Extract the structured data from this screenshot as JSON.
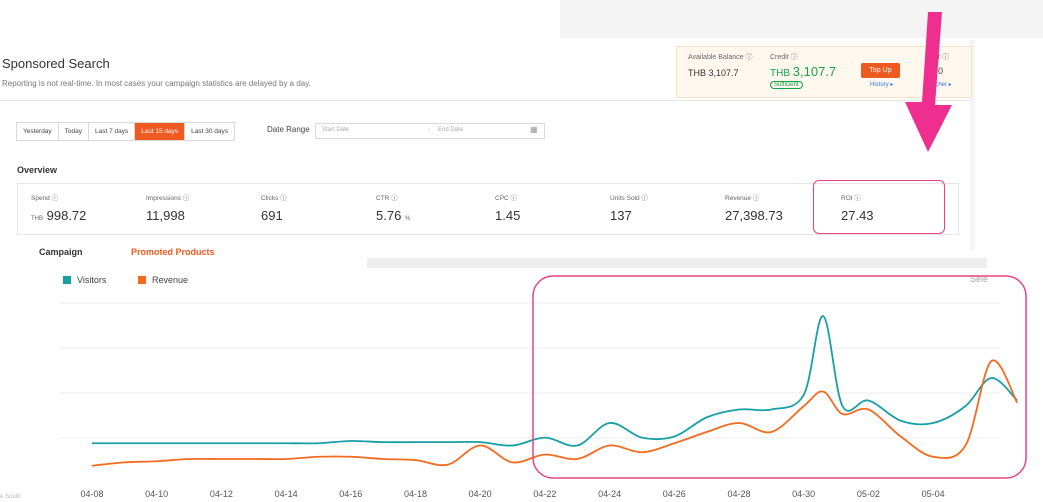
{
  "page": {
    "title": "Sponsored Search",
    "subtitle": "Reporting is not real-time. In most cases your campaign statistics are delayed by a day."
  },
  "balance": {
    "available_label": "Available Balance ⓘ",
    "available_value": "THB 3,107.7",
    "credit_label": "Credit ⓘ",
    "credit_currency": "THB",
    "credit_value": "3,107.7",
    "sufficient": "Sufficient",
    "topup": "Top Up",
    "history": "History ▸",
    "voucher_label_fragment": "r ⓘ",
    "voucher_value_fragment": "0",
    "voucher_link_fragment": "ucher ▸"
  },
  "date_tabs": [
    "Yesterday",
    "Today",
    "Last 7 days",
    "Last 15 days",
    "Last 30 days"
  ],
  "active_tab": "Last 15 days",
  "date_range": {
    "label": "Date Range",
    "start_placeholder": "Start Date",
    "end_placeholder": "End Date",
    "separator": "-"
  },
  "overview": {
    "title": "Overview",
    "metrics": [
      {
        "label": "Spend ⓘ",
        "prefix": "THB",
        "value": "998.72"
      },
      {
        "label": "Impressions ⓘ",
        "value": "11,998"
      },
      {
        "label": "Clicks ⓘ",
        "value": "691"
      },
      {
        "label": "CTR ⓘ",
        "value": "5.76",
        "unit": "%"
      },
      {
        "label": "CPC ⓘ",
        "value": "1.45"
      },
      {
        "label": "Units Sold ⓘ",
        "value": "137"
      },
      {
        "label": "Revenue ⓘ",
        "value": "27,398.73"
      },
      {
        "label": "ROI ⓘ",
        "value": "27.43"
      }
    ]
  },
  "links": {
    "campaign": "Campaign",
    "promoted": "Promoted Products"
  },
  "select_fragment": "Sele",
  "footer_fragment": "e South",
  "colors": {
    "accent": "#ee5a1f",
    "visitors": "#16a0a6",
    "revenue": "#f26b21",
    "highlight": "#e8457c",
    "credit": "#16a34a"
  },
  "chart_data": {
    "type": "line",
    "x": [
      "04-08",
      "04-10",
      "04-12",
      "04-14",
      "04-16",
      "04-18",
      "04-20",
      "04-22",
      "04-24",
      "04-26",
      "04-28",
      "04-30",
      "05-02",
      "05-04"
    ],
    "series": [
      {
        "name": "Visitors",
        "color": "#16a0a6",
        "points": [
          [
            0,
            22
          ],
          [
            0.5,
            22
          ],
          [
            1,
            22
          ],
          [
            1.5,
            22
          ],
          [
            2,
            22
          ],
          [
            2.5,
            22
          ],
          [
            3,
            22
          ],
          [
            3.5,
            22
          ],
          [
            4,
            24
          ],
          [
            4.5,
            23
          ],
          [
            5,
            23
          ],
          [
            5.5,
            23
          ],
          [
            6,
            23
          ],
          [
            6.5,
            20
          ],
          [
            7,
            27
          ],
          [
            7.5,
            20
          ],
          [
            8,
            40
          ],
          [
            8.5,
            27
          ],
          [
            9,
            28
          ],
          [
            9.5,
            45
          ],
          [
            10,
            52
          ],
          [
            10.5,
            52
          ],
          [
            11,
            65
          ],
          [
            11.3,
            135
          ],
          [
            11.6,
            55
          ],
          [
            12,
            60
          ],
          [
            12.5,
            42
          ],
          [
            13,
            40
          ],
          [
            13.5,
            55
          ],
          [
            13.9,
            80
          ],
          [
            14.3,
            60
          ]
        ]
      },
      {
        "name": "Revenue",
        "color": "#f26b21",
        "points": [
          [
            0,
            2
          ],
          [
            0.5,
            5
          ],
          [
            1,
            6
          ],
          [
            1.5,
            8
          ],
          [
            2,
            8
          ],
          [
            2.5,
            8
          ],
          [
            3,
            8
          ],
          [
            3.5,
            10
          ],
          [
            4,
            10
          ],
          [
            4.5,
            8
          ],
          [
            5,
            7
          ],
          [
            5.5,
            3
          ],
          [
            6,
            20
          ],
          [
            6.5,
            5
          ],
          [
            7,
            12
          ],
          [
            7.5,
            8
          ],
          [
            8,
            20
          ],
          [
            8.5,
            14
          ],
          [
            9,
            22
          ],
          [
            9.5,
            32
          ],
          [
            10,
            40
          ],
          [
            10.5,
            32
          ],
          [
            11,
            55
          ],
          [
            11.3,
            68
          ],
          [
            11.6,
            48
          ],
          [
            12,
            52
          ],
          [
            12.5,
            28
          ],
          [
            13,
            10
          ],
          [
            13.5,
            20
          ],
          [
            13.9,
            95
          ],
          [
            14.3,
            58
          ]
        ]
      }
    ],
    "ylim": [
      0,
      160
    ]
  }
}
